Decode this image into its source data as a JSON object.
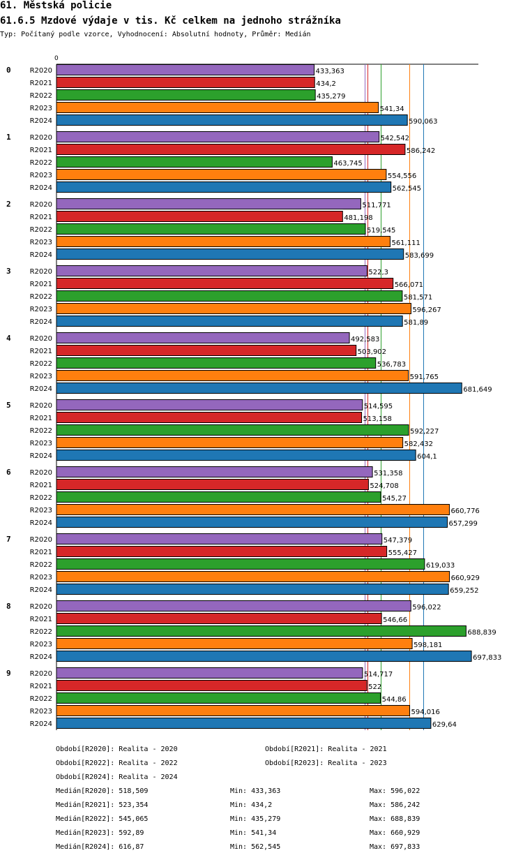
{
  "header": {
    "title": "61. Městská policie",
    "subtitle": "61.6.5 Mzdové výdaje v tis. Kč celkem na jednoho strážníka",
    "info": "Typ: Počítaný podle vzorce, Vyhodnocení: Absolutní hodnoty, Průměr: Medián"
  },
  "chart_data": {
    "type": "bar",
    "orientation": "horizontal",
    "title": "61.6.5 Mzdové výdaje v tis. Kč celkem na jednoho strážníka",
    "axis_zero_label": "0",
    "xlim": [
      0,
      697.833
    ],
    "categories": [
      "0",
      "1",
      "2",
      "3",
      "4",
      "5",
      "6",
      "7",
      "8",
      "9"
    ],
    "series": [
      {
        "name": "R2020",
        "color": "#9467bd",
        "values": [
          433.363,
          542.542,
          511.771,
          522.3,
          492.583,
          514.595,
          531.358,
          547.379,
          596.022,
          514.717
        ],
        "labels": [
          "433,363",
          "542,542",
          "511,771",
          "522,3",
          "492,583",
          "514,595",
          "531,358",
          "547,379",
          "596,022",
          "514,717"
        ]
      },
      {
        "name": "R2021",
        "color": "#d62728",
        "values": [
          434.2,
          586.242,
          481.198,
          566.071,
          503.902,
          513.158,
          524.708,
          555.427,
          546.66,
          522
        ],
        "labels": [
          "434,2",
          "586,242",
          "481,198",
          "566,071",
          "503,902",
          "513,158",
          "524,708",
          "555,427",
          "546,66",
          "522"
        ]
      },
      {
        "name": "R2022",
        "color": "#2ca02c",
        "values": [
          435.279,
          463.745,
          519.545,
          581.571,
          536.783,
          592.227,
          545.27,
          619.033,
          688.839,
          544.86
        ],
        "labels": [
          "435,279",
          "463,745",
          "519,545",
          "581,571",
          "536,783",
          "592,227",
          "545,27",
          "619,033",
          "688,839",
          "544,86"
        ]
      },
      {
        "name": "R2023",
        "color": "#ff7f0e",
        "values": [
          541.34,
          554.556,
          561.111,
          596.267,
          591.765,
          582.432,
          660.776,
          660.929,
          598.181,
          594.016
        ],
        "labels": [
          "541,34",
          "554,556",
          "561,111",
          "596,267",
          "591,765",
          "582,432",
          "660,776",
          "660,929",
          "598,181",
          "594,016"
        ]
      },
      {
        "name": "R2024",
        "color": "#1f77b4",
        "values": [
          590.063,
          562.545,
          583.699,
          581.89,
          681.649,
          604.1,
          657.299,
          659.252,
          697.833,
          629.64
        ],
        "labels": [
          "590,063",
          "562,545",
          "583,699",
          "581,89",
          "681,649",
          "604,1",
          "657,299",
          "659,252",
          "697,833",
          "629,64"
        ]
      }
    ],
    "median_lines": [
      {
        "series": "R2020",
        "value": 518.509,
        "color": "#9467bd"
      },
      {
        "series": "R2021",
        "value": 523.354,
        "color": "#d62728"
      },
      {
        "series": "R2022",
        "value": 545.065,
        "color": "#2ca02c"
      },
      {
        "series": "R2023",
        "value": 592.89,
        "color": "#ff7f0e"
      },
      {
        "series": "R2024",
        "value": 616.87,
        "color": "#1f77b4"
      }
    ]
  },
  "legend": {
    "periods": [
      "Období[R2020]: Realita - 2020",
      "Období[R2021]: Realita - 2021",
      "Období[R2022]: Realita - 2022",
      "Období[R2023]: Realita - 2023",
      "Období[R2024]: Realita - 2024"
    ],
    "stats": [
      {
        "median": "Medián[R2020]: 518,509",
        "min": "Min: 433,363",
        "max": "Max: 596,022"
      },
      {
        "median": "Medián[R2021]: 523,354",
        "min": "Min: 434,2",
        "max": "Max: 586,242"
      },
      {
        "median": "Medián[R2022]: 545,065",
        "min": "Min: 435,279",
        "max": "Max: 688,839"
      },
      {
        "median": "Medián[R2023]: 592,89",
        "min": "Min: 541,34",
        "max": "Max: 660,929"
      },
      {
        "median": "Medián[R2024]: 616,87",
        "min": "Min: 562,545",
        "max": "Max: 697,833"
      }
    ]
  }
}
